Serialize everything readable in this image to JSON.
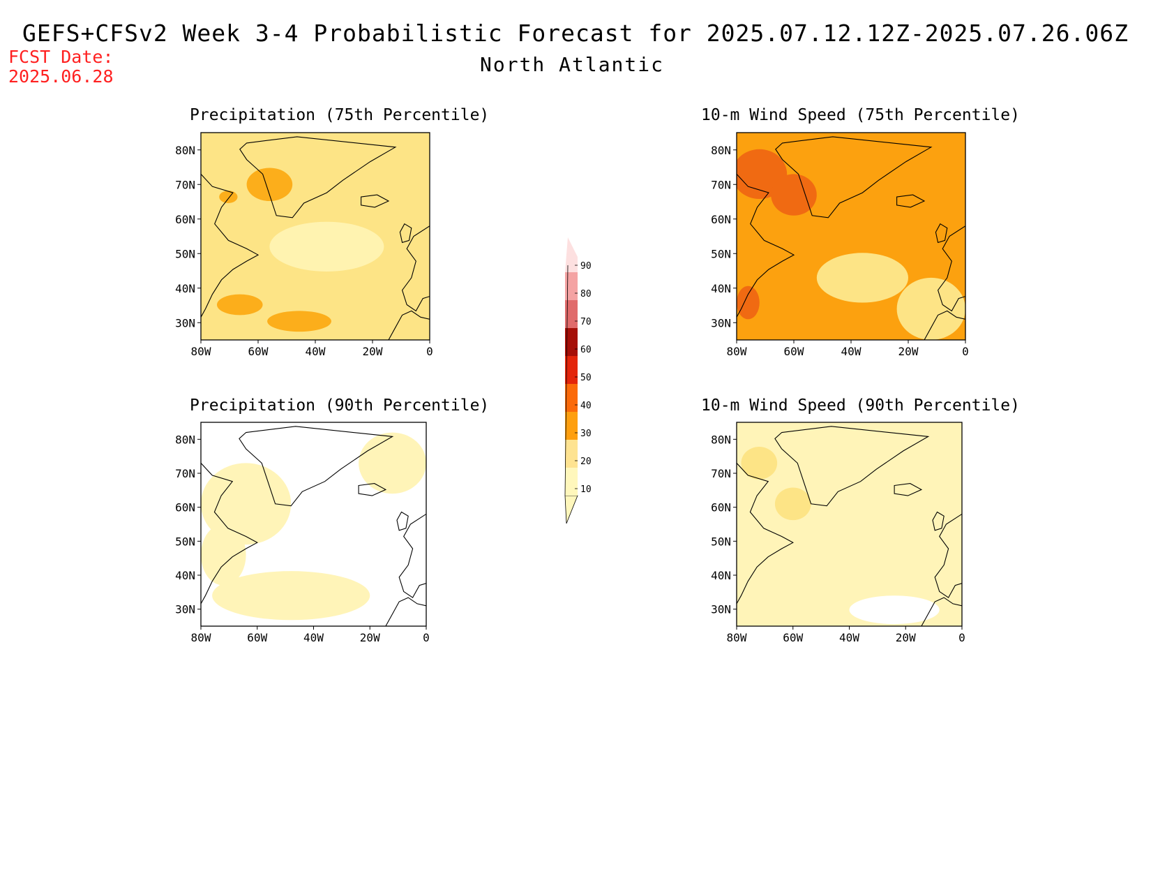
{
  "header": {
    "title": "GEFS+CFSv2 Week 3-4 Probabilistic Forecast for 2025.07.12.12Z-2025.07.26.06Z",
    "region": "North Atlantic",
    "fcst_label": "FCST Date:",
    "fcst_date": "2025.06.28"
  },
  "panels": [
    {
      "id": "p75",
      "title": "Precipitation (75th Percentile)",
      "base": "#fde486",
      "accent": "#fcae1b",
      "light": "#fff3b0"
    },
    {
      "id": "w75",
      "title": "10-m Wind Speed (75th Percentile)",
      "base": "#fca10f",
      "accent": "#f06a12",
      "light": "#fde486"
    },
    {
      "id": "p90",
      "title": "Precipitation (90th Percentile)",
      "base": "#ffffff",
      "accent": "#fff4b8",
      "light": "#fff9d8"
    },
    {
      "id": "w90",
      "title": "10-m Wind Speed (90th Percentile)",
      "base": "#fff4b8",
      "accent": "#fde486",
      "light": "#ffffff"
    }
  ],
  "axes": {
    "x_ticks": [
      "80W",
      "60W",
      "40W",
      "20W",
      "0"
    ],
    "y_ticks": [
      "80N",
      "70N",
      "60N",
      "50N",
      "40N",
      "30N"
    ]
  },
  "colorbar": {
    "levels": [
      "10",
      "20",
      "30",
      "40",
      "50",
      "60",
      "70",
      "80",
      "90"
    ],
    "colors": [
      "#fff7bc",
      "#fee391",
      "#fe9f0f",
      "#fb6a0a",
      "#e3250b",
      "#a50f08",
      "#e06b6b",
      "#f4a3a3",
      "#fde0e0"
    ]
  }
}
